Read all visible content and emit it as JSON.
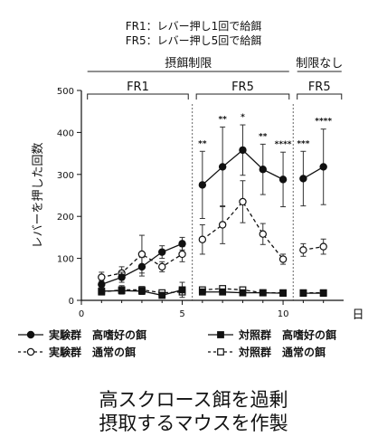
{
  "chart_data": {
    "type": "line",
    "header_lines": [
      "FR1：レバー押し1回で給餌",
      "FR5：レバー押し5回で給餌"
    ],
    "phases": [
      {
        "label": "摂餌制限",
        "sub": [
          {
            "label": "FR1",
            "from": 1,
            "to": 5
          },
          {
            "label": "FR5",
            "from": 6,
            "to": 10
          }
        ]
      },
      {
        "label": "制限なし",
        "sub": [
          {
            "label": "FR5",
            "from": 11,
            "to": 12
          }
        ]
      }
    ],
    "xlabel": "日",
    "ylabel": "レバーを押した回数",
    "xlim": [
      0,
      13
    ],
    "ylim": [
      0,
      500
    ],
    "xticks": [
      0,
      5,
      10
    ],
    "yticks": [
      0,
      100,
      200,
      300,
      400,
      500
    ],
    "phase_boundaries": [
      5.5,
      10.5
    ],
    "legend_position": "bottom",
    "series": [
      {
        "name": "実験群　高嗜好の餌",
        "marker": "filled-circle",
        "line": "solid",
        "segments": [
          {
            "x": [
              1,
              2,
              3,
              4,
              5
            ],
            "y": [
              38,
              55,
              80,
              115,
              135
            ],
            "err": [
              8,
              12,
              22,
              15,
              15
            ]
          },
          {
            "x": [
              6,
              7,
              8,
              9,
              10
            ],
            "y": [
              275,
              318,
              358,
              312,
              288
            ],
            "err": [
              80,
              95,
              60,
              60,
              65
            ]
          },
          {
            "x": [
              11,
              12
            ],
            "y": [
              290,
              318
            ],
            "err": [
              65,
              90
            ]
          }
        ]
      },
      {
        "name": "実験群　通常の餌",
        "marker": "open-circle",
        "line": "dashed",
        "segments": [
          {
            "x": [
              1,
              2,
              3,
              4,
              5
            ],
            "y": [
              55,
              65,
              110,
              80,
              110
            ],
            "err": [
              12,
              15,
              45,
              12,
              18
            ]
          },
          {
            "x": [
              6,
              7,
              8,
              9,
              10
            ],
            "y": [
              145,
              180,
              235,
              158,
              98
            ],
            "err": [
              35,
              45,
              50,
              25,
              12
            ]
          },
          {
            "x": [
              11,
              12
            ],
            "y": [
              120,
              128
            ],
            "err": [
              15,
              18
            ]
          }
        ]
      },
      {
        "name": "対照群　高嗜好の餌",
        "marker": "filled-square",
        "line": "solid",
        "segments": [
          {
            "x": [
              1,
              2,
              3,
              4,
              5
            ],
            "y": [
              22,
              23,
              22,
              12,
              25
            ],
            "err": [
              5,
              8,
              8,
              5,
              18
            ]
          },
          {
            "x": [
              6,
              7,
              8,
              9,
              10
            ],
            "y": [
              20,
              20,
              18,
              18,
              17
            ],
            "err": [
              4,
              4,
              3,
              3,
              3
            ]
          },
          {
            "x": [
              11,
              12
            ],
            "y": [
              17,
              17
            ],
            "err": [
              3,
              3
            ]
          }
        ]
      },
      {
        "name": "対照群　通常の餌",
        "marker": "open-square",
        "line": "dashed",
        "segments": [
          {
            "x": [
              1,
              2,
              3,
              4,
              5
            ],
            "y": [
              20,
              25,
              25,
              18,
              20
            ],
            "err": [
              5,
              10,
              8,
              5,
              5
            ]
          },
          {
            "x": [
              6,
              7,
              8,
              9,
              10
            ],
            "y": [
              25,
              28,
              25,
              18,
              18
            ],
            "err": [
              5,
              5,
              5,
              4,
              4
            ]
          },
          {
            "x": [
              11,
              12
            ],
            "y": [
              18,
              18
            ],
            "err": [
              3,
              3
            ]
          }
        ]
      }
    ],
    "significance": [
      {
        "x": 6,
        "label": "**"
      },
      {
        "x": 7,
        "label": "**"
      },
      {
        "x": 8,
        "label": "*"
      },
      {
        "x": 9,
        "label": "**"
      },
      {
        "x": 10,
        "label": "****"
      },
      {
        "x": 11,
        "label": "***"
      },
      {
        "x": 12,
        "label": "****"
      }
    ]
  },
  "caption": {
    "line1": "高スクロース餌を過剰",
    "line2": "摂取するマウスを作製"
  }
}
